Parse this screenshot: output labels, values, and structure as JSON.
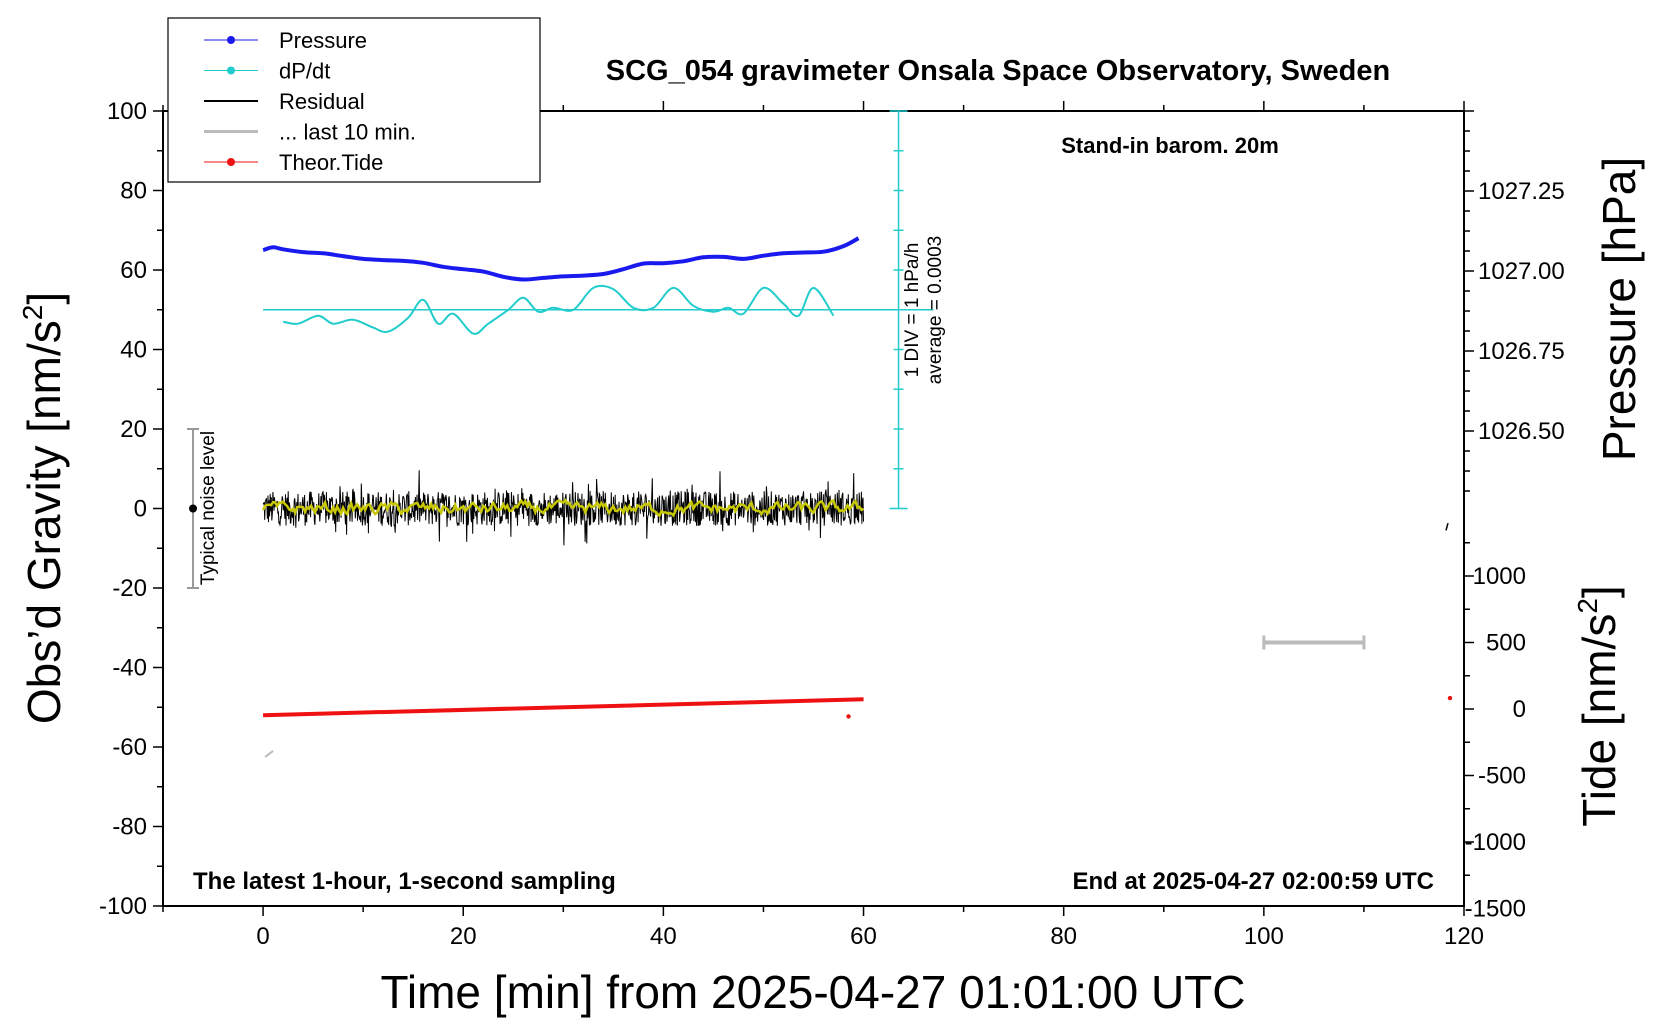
{
  "chart_data": {
    "type": "line",
    "title": "SCG_054 gravimeter Onsala Space Observatory, Sweden",
    "xlabel": "Time [min] from 2025-04-27 01:01:00 UTC",
    "ylabel_left": "Obs’d Gravity [nm/s²]",
    "ylabel_right_pressure": "Pressure [hPa]",
    "ylabel_right_tide": "Tide [nm/s²]",
    "xlim": [
      -10,
      120
    ],
    "ylim": [
      -100,
      100
    ],
    "x_ticks": [
      "0",
      "20",
      "40",
      "60",
      "80",
      "100",
      "120"
    ],
    "y_ticks": [
      "100",
      "80",
      "60",
      "40",
      "20",
      "0",
      "-20",
      "-40",
      "-60",
      "-80",
      "-100"
    ],
    "pressure_ticks": [
      "1027.25",
      "1027.00",
      "1026.75",
      "1026.50"
    ],
    "tide_ticks": [
      "1000",
      "500",
      "0",
      "-500",
      "-1000",
      "-1500"
    ],
    "annotations": {
      "barometer": "Stand-in barom. 20m",
      "sampling": "The latest 1-hour, 1-second sampling",
      "end_time": "End at 2025-04-27 02:00:59 UTC",
      "noise": "Typical noise level",
      "div_line1": "1 DIV = 1 hPa/h",
      "div_line2": "average = 0.0003"
    },
    "legend": [
      {
        "label": "Pressure",
        "color": "#1a1aee"
      },
      {
        "label": "dP/dt",
        "color": "#22cccc"
      },
      {
        "label": "Residual",
        "color": "#000000"
      },
      {
        "label": "... last 10 min.",
        "color": "#bbbbbb"
      },
      {
        "label": "Theor.Tide",
        "color": "#ee1111"
      }
    ],
    "series": [
      {
        "name": "Pressure",
        "color": "#1a1aee",
        "x": [
          0,
          1,
          2,
          4,
          6,
          8,
          10,
          12,
          14,
          16,
          18,
          20,
          22,
          24,
          26,
          28,
          30,
          32,
          34,
          36,
          38,
          40,
          42,
          44,
          46,
          48,
          50,
          52,
          54,
          56,
          58,
          59.5
        ],
        "y": [
          65,
          65.7,
          65.2,
          64.5,
          64.2,
          63.5,
          62.8,
          62.5,
          62.3,
          61.8,
          60.8,
          60.2,
          59.6,
          58.3,
          57.6,
          58.0,
          58.4,
          58.6,
          59.0,
          60.2,
          61.6,
          61.7,
          62.2,
          63.2,
          63.3,
          62.8,
          63.6,
          64.2,
          64.4,
          64.6,
          66.0,
          68.0
        ]
      },
      {
        "name": "dP/dt",
        "color": "#22cccc",
        "x": [
          2,
          3.5,
          5.5,
          7,
          9,
          11,
          12.5,
          14.5,
          16,
          17.5,
          19,
          21,
          22.5,
          24.5,
          26,
          27.5,
          29,
          31,
          33,
          35,
          37,
          39,
          41,
          43,
          45,
          46.5,
          48,
          50,
          52,
          53.5,
          55,
          57
        ],
        "y": [
          47,
          46.5,
          48.5,
          46.5,
          47.5,
          45.5,
          44.5,
          48,
          52.5,
          46.5,
          49,
          44,
          46.5,
          50,
          53,
          49.5,
          50.5,
          50,
          55.5,
          55.2,
          50.5,
          50.5,
          55.5,
          51,
          49.5,
          50.5,
          49,
          55.5,
          51.5,
          48.5,
          55.5,
          48.5
        ]
      },
      {
        "name": "Residual",
        "color": "#000000",
        "x_start": 0,
        "x_end": 60,
        "mean": 0,
        "amplitude": 8
      },
      {
        "name": "Residual smoothed",
        "color": "#c8c800",
        "x_start": 0,
        "x_end": 60,
        "mean": 0,
        "amplitude": 1.5
      },
      {
        "name": "Theor.Tide",
        "color": "#ee1111",
        "x": [
          0,
          60
        ],
        "y": [
          -52,
          -48
        ]
      }
    ],
    "average_line_y": 50,
    "div_scale_x": 63.5,
    "div_scale_range": [
      0,
      100
    ],
    "noise_bar": {
      "x": -7,
      "y_range": [
        -20,
        20
      ],
      "center": 0
    },
    "last10_bar": {
      "x_range": [
        100,
        110
      ],
      "tide_value": 500
    },
    "grid": false
  }
}
